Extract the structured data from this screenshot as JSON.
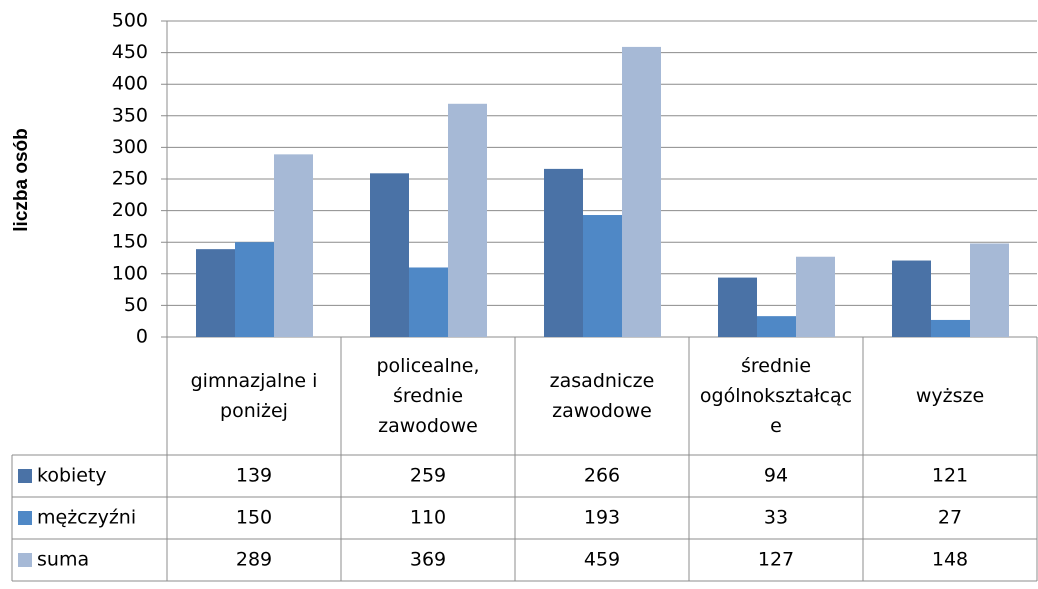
{
  "chart_data": {
    "type": "bar",
    "y_label": "liczba osób",
    "categories": [
      "gimnazjalne i poniżej",
      "policealne, średnie zawodowe",
      "zasadnicze zawodowe",
      "średnie ogólnokształcące",
      "wyższe"
    ],
    "series": [
      {
        "name": "kobiety",
        "color": "#4a72a6",
        "values": [
          139,
          259,
          266,
          94,
          121
        ]
      },
      {
        "name": "mężczyźni",
        "color": "#4f88c6",
        "values": [
          150,
          110,
          193,
          33,
          27
        ]
      },
      {
        "name": "suma",
        "color": "#a6b9d6",
        "values": [
          289,
          369,
          459,
          127,
          148
        ]
      }
    ],
    "ylim": [
      0,
      500
    ],
    "yticks": [
      0,
      50,
      100,
      150,
      200,
      250,
      300,
      350,
      400,
      450,
      500
    ],
    "grid": true
  }
}
